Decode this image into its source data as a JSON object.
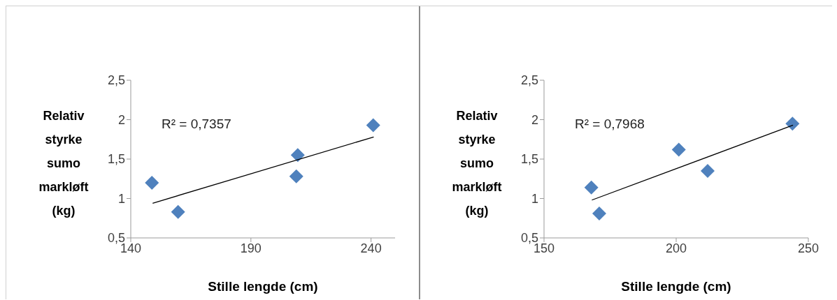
{
  "chart_data": [
    {
      "type": "scatter",
      "xlabel": "Stille lengde (cm)",
      "ylabel": "Relativ styrke sumo markløft (kg)",
      "annotations": [
        "R² = 0,7357"
      ],
      "marker": "diamond",
      "xlim": [
        140,
        250
      ],
      "xticks": [
        140,
        190,
        240
      ],
      "ylim": [
        0.5,
        2.5
      ],
      "yticks": [
        {
          "value": 0.5,
          "label": "0,5"
        },
        {
          "value": 1,
          "label": "1"
        },
        {
          "value": 1.5,
          "label": "1,5"
        },
        {
          "value": 2,
          "label": "2"
        },
        {
          "value": 2.5,
          "label": "2,5"
        }
      ],
      "series": [
        {
          "color": "#4f81bd",
          "x": [
            148.8,
            159.7,
            209.5,
            208.9,
            240.9
          ],
          "values": [
            1.2,
            0.83,
            1.55,
            1.28,
            1.93
          ]
        },
        {
          "type": "line",
          "marker": "none",
          "color": "#000000",
          "x": [
            149.1,
            241.1
          ],
          "values": [
            0.94,
            1.78
          ]
        }
      ]
    },
    {
      "type": "scatter",
      "xlabel": "Stille lengde (cm)",
      "ylabel": "Relativ styrke sumo markløft (kg)",
      "annotations": [
        "R² = 0,7968"
      ],
      "marker": "diamond",
      "xlim": [
        150,
        250
      ],
      "xticks": [
        150,
        200,
        250
      ],
      "ylim": [
        0.5,
        2.5
      ],
      "yticks": [
        {
          "value": 0.5,
          "label": "0,5"
        },
        {
          "value": 1,
          "label": "1"
        },
        {
          "value": 1.5,
          "label": "1,5"
        },
        {
          "value": 2,
          "label": "2"
        },
        {
          "value": 2.5,
          "label": "2,5"
        }
      ],
      "series": [
        {
          "color": "#4f81bd",
          "x": [
            167.9,
            170.9,
            201.0,
            211.9,
            244.0
          ],
          "values": [
            1.14,
            0.81,
            1.62,
            1.35,
            1.95
          ]
        },
        {
          "type": "line",
          "marker": "none",
          "color": "#000000",
          "x": [
            168.1,
            244.2
          ],
          "values": [
            0.98,
            1.93
          ]
        }
      ]
    }
  ]
}
